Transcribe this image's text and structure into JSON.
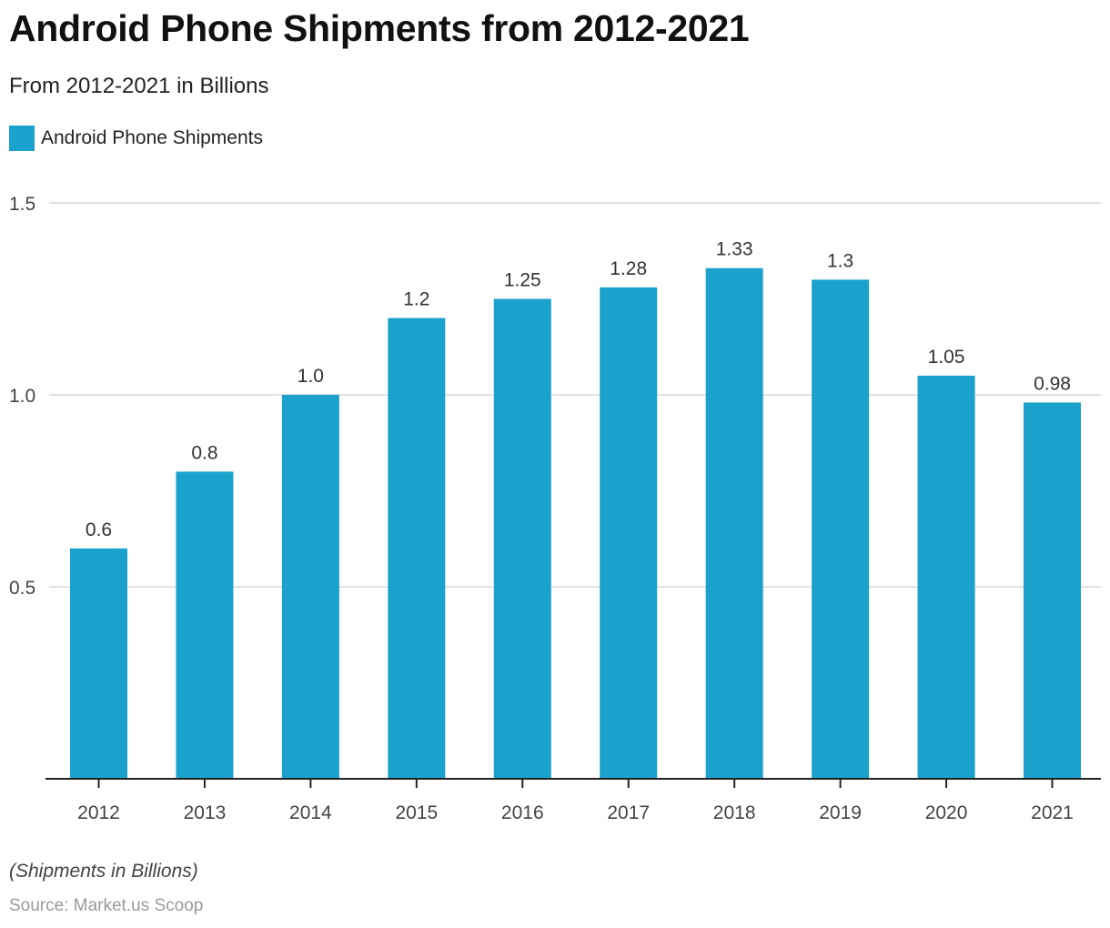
{
  "chart_data": {
    "type": "bar",
    "title": "Android Phone Shipments from 2012-2021",
    "subtitle": "From 2012-2021 in Billions",
    "categories": [
      "2012",
      "2013",
      "2014",
      "2015",
      "2016",
      "2017",
      "2018",
      "2019",
      "2020",
      "2021"
    ],
    "series": [
      {
        "name": "Android Phone Shipments",
        "color": "#1aa1cc",
        "values": [
          0.6,
          0.8,
          1.0,
          1.2,
          1.25,
          1.28,
          1.33,
          1.3,
          1.05,
          0.98
        ],
        "labels": [
          "0.6",
          "0.8",
          "1.0",
          "1.2",
          "1.25",
          "1.28",
          "1.33",
          "1.3",
          "1.05",
          "0.98"
        ]
      }
    ],
    "xlabel": "",
    "ylabel": "",
    "ylim": [
      0,
      1.5
    ],
    "yticks": [
      {
        "value": 0.5,
        "label": "0.5"
      },
      {
        "value": 1.0,
        "label": "1.0"
      },
      {
        "value": 1.5,
        "label": "1.5"
      }
    ],
    "grid": true,
    "legend_position": "top-left",
    "note": "(Shipments in Billions)",
    "source": "Source: Market.us Scoop"
  }
}
